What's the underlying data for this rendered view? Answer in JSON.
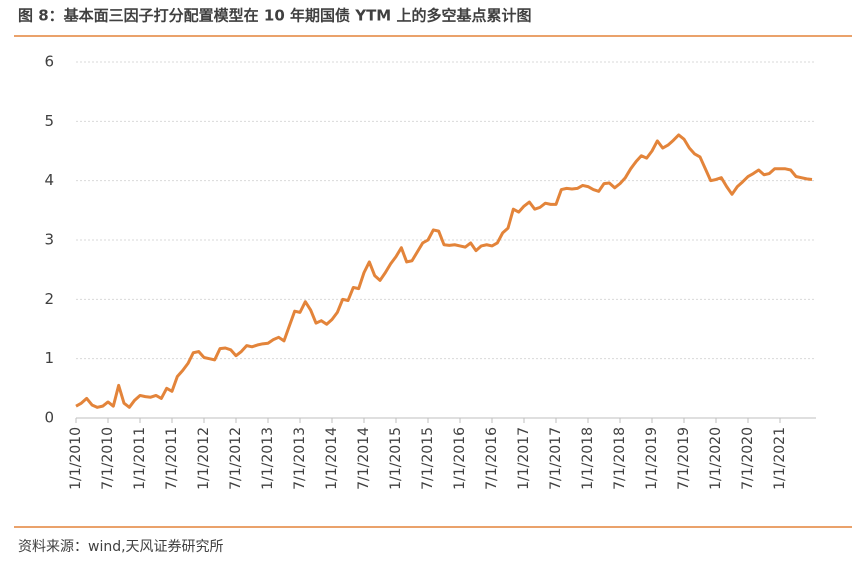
{
  "chart_data": {
    "type": "line",
    "title": "图 8：基本面三因子打分配置模型在 10 年期国债 YTM 上的多空基点累计图",
    "source": "资料来源：wind,天风证券研究所",
    "categories": [
      "1/1/2010",
      null,
      null,
      null,
      null,
      null,
      "7/1/2010",
      null,
      null,
      null,
      null,
      null,
      "1/1/2011",
      null,
      null,
      null,
      null,
      null,
      "7/1/2011",
      null,
      null,
      null,
      null,
      null,
      "1/1/2012",
      null,
      null,
      null,
      null,
      null,
      "7/1/2012",
      null,
      null,
      null,
      null,
      null,
      "1/1/2013",
      null,
      null,
      null,
      null,
      null,
      "7/1/2013",
      null,
      null,
      null,
      null,
      null,
      "1/1/2014",
      null,
      null,
      null,
      null,
      null,
      "7/1/2014",
      null,
      null,
      null,
      null,
      null,
      "1/1/2015",
      null,
      null,
      null,
      null,
      null,
      "7/1/2015",
      null,
      null,
      null,
      null,
      null,
      "1/1/2016",
      null,
      null,
      null,
      null,
      null,
      "7/1/2016",
      null,
      null,
      null,
      null,
      null,
      "1/1/2017",
      null,
      null,
      null,
      null,
      null,
      "7/1/2017",
      null,
      null,
      null,
      null,
      null,
      "1/1/2018",
      null,
      null,
      null,
      null,
      null,
      "7/1/2018",
      null,
      null,
      null,
      null,
      null,
      "1/1/2019",
      null,
      null,
      null,
      null,
      null,
      "7/1/2019",
      null,
      null,
      null,
      null,
      null,
      "1/1/2020",
      null,
      null,
      null,
      null,
      null,
      "7/1/2020",
      null,
      null,
      null,
      null,
      null,
      "1/1/2021",
      null,
      null,
      null,
      null,
      null,
      null
    ],
    "values": [
      0.2,
      0.25,
      0.33,
      0.22,
      0.18,
      0.2,
      0.27,
      0.2,
      0.55,
      0.25,
      0.18,
      0.3,
      0.38,
      0.36,
      0.35,
      0.38,
      0.33,
      0.5,
      0.45,
      0.7,
      0.8,
      0.92,
      1.1,
      1.12,
      1.02,
      1.0,
      0.98,
      1.17,
      1.18,
      1.15,
      1.05,
      1.12,
      1.22,
      1.2,
      1.23,
      1.25,
      1.26,
      1.32,
      1.36,
      1.3,
      1.55,
      1.8,
      1.78,
      1.96,
      1.82,
      1.6,
      1.64,
      1.58,
      1.66,
      1.78,
      2.0,
      1.98,
      2.2,
      2.18,
      2.45,
      2.63,
      2.4,
      2.32,
      2.45,
      2.6,
      2.72,
      2.87,
      2.63,
      2.65,
      2.8,
      2.95,
      3.0,
      3.17,
      3.15,
      2.92,
      2.91,
      2.92,
      2.9,
      2.88,
      2.95,
      2.82,
      2.9,
      2.92,
      2.9,
      2.95,
      3.12,
      3.2,
      3.52,
      3.47,
      3.57,
      3.64,
      3.52,
      3.55,
      3.62,
      3.6,
      3.6,
      3.85,
      3.87,
      3.86,
      3.87,
      3.92,
      3.9,
      3.85,
      3.82,
      3.95,
      3.96,
      3.88,
      3.95,
      4.05,
      4.2,
      4.32,
      4.42,
      4.38,
      4.5,
      4.67,
      4.55,
      4.6,
      4.68,
      4.77,
      4.7,
      4.55,
      4.45,
      4.4,
      4.2,
      4.0,
      4.02,
      4.05,
      3.9,
      3.77,
      3.9,
      3.98,
      4.07,
      4.12,
      4.18,
      4.1,
      4.12,
      4.2,
      4.2,
      4.2,
      4.18,
      4.07,
      4.05,
      4.03,
      4.02
    ],
    "color": "#e3843a",
    "ylim": [
      0,
      6
    ],
    "yticks": [
      0,
      1,
      2,
      3,
      4,
      5,
      6
    ],
    "grid": true
  }
}
